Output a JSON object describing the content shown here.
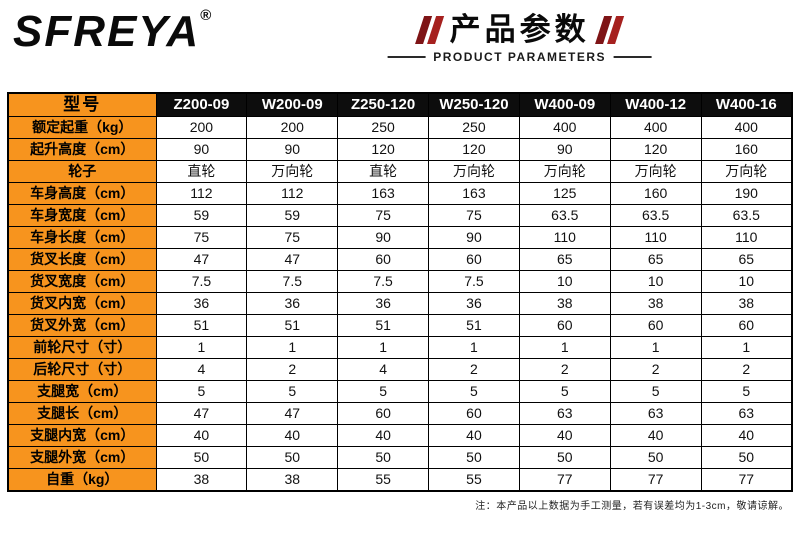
{
  "brand": {
    "logo": "SFREYA",
    "registered": "®"
  },
  "header": {
    "title": "产品参数",
    "subtitle": "PRODUCT PARAMETERS"
  },
  "table": {
    "columns": [
      "型号",
      "Z200-09",
      "W200-09",
      "Z250-120",
      "W250-120",
      "W400-09",
      "W400-12",
      "W400-16"
    ],
    "rows": [
      {
        "label": "额定起重（kg）",
        "values": [
          "200",
          "200",
          "250",
          "250",
          "400",
          "400",
          "400"
        ]
      },
      {
        "label": "起升高度（cm）",
        "values": [
          "90",
          "90",
          "120",
          "120",
          "90",
          "120",
          "160"
        ]
      },
      {
        "label": "轮子",
        "values": [
          "直轮",
          "万向轮",
          "直轮",
          "万向轮",
          "万向轮",
          "万向轮",
          "万向轮"
        ]
      },
      {
        "label": "车身高度（cm）",
        "values": [
          "112",
          "112",
          "163",
          "163",
          "125",
          "160",
          "190"
        ]
      },
      {
        "label": "车身宽度（cm）",
        "values": [
          "59",
          "59",
          "75",
          "75",
          "63.5",
          "63.5",
          "63.5"
        ]
      },
      {
        "label": "车身长度（cm）",
        "values": [
          "75",
          "75",
          "90",
          "90",
          "110",
          "110",
          "110"
        ]
      },
      {
        "label": "货叉长度（cm）",
        "values": [
          "47",
          "47",
          "60",
          "60",
          "65",
          "65",
          "65"
        ]
      },
      {
        "label": "货叉宽度（cm）",
        "values": [
          "7.5",
          "7.5",
          "7.5",
          "7.5",
          "10",
          "10",
          "10"
        ]
      },
      {
        "label": "货叉内宽（cm）",
        "values": [
          "36",
          "36",
          "36",
          "36",
          "38",
          "38",
          "38"
        ]
      },
      {
        "label": "货叉外宽（cm）",
        "values": [
          "51",
          "51",
          "51",
          "51",
          "60",
          "60",
          "60"
        ]
      },
      {
        "label": "前轮尺寸（寸）",
        "values": [
          "1",
          "1",
          "1",
          "1",
          "1",
          "1",
          "1"
        ]
      },
      {
        "label": "后轮尺寸（寸）",
        "values": [
          "4",
          "2",
          "4",
          "2",
          "2",
          "2",
          "2"
        ]
      },
      {
        "label": "支腿宽（cm）",
        "values": [
          "5",
          "5",
          "5",
          "5",
          "5",
          "5",
          "5"
        ]
      },
      {
        "label": "支腿长（cm）",
        "values": [
          "47",
          "47",
          "60",
          "60",
          "63",
          "63",
          "63"
        ]
      },
      {
        "label": "支腿内宽（cm）",
        "values": [
          "40",
          "40",
          "40",
          "40",
          "40",
          "40",
          "40"
        ]
      },
      {
        "label": "支腿外宽（cm）",
        "values": [
          "50",
          "50",
          "50",
          "50",
          "50",
          "50",
          "50"
        ]
      },
      {
        "label": "自重（kg）",
        "values": [
          "38",
          "38",
          "55",
          "55",
          "77",
          "77",
          "77"
        ]
      }
    ]
  },
  "footnote": "注：本产品以上数据为手工测量，若有误差均为1-3cm，敬请谅解。",
  "colors": {
    "accent_orange": "#f7941e",
    "header_black": "#0d0d0d",
    "decor_red": "#a6211f"
  }
}
